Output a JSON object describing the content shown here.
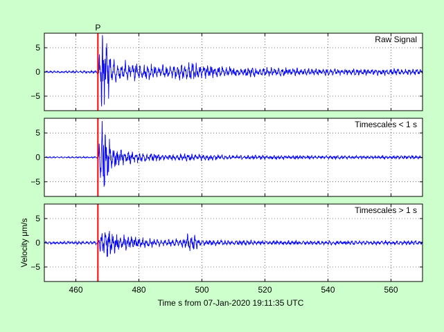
{
  "chart_data": [
    {
      "type": "line",
      "annotation": "Raw Signal",
      "xlim": [
        450,
        570
      ],
      "ylim": [
        -8,
        8
      ],
      "xticks": [
        460,
        480,
        500,
        520,
        540,
        560
      ],
      "yticks": [
        -5,
        0,
        5
      ],
      "pick": {
        "label": "P",
        "x": 467
      },
      "grid": true,
      "series": [
        {
          "color": "#0000ff",
          "x_range": [
            450,
            570
          ],
          "envelope": [
            [
              450,
              0.2
            ],
            [
              466.8,
              0.25
            ],
            [
              467.3,
              3.5
            ],
            [
              468,
              6.5
            ],
            [
              469,
              7.5
            ],
            [
              470,
              5
            ],
            [
              471,
              3
            ],
            [
              473,
              2
            ],
            [
              476,
              1.8
            ],
            [
              480,
              1.4
            ],
            [
              485,
              1.3
            ],
            [
              490,
              1.1
            ],
            [
              495,
              1.5
            ],
            [
              497,
              1.9
            ],
            [
              499,
              1.2
            ],
            [
              505,
              1.0
            ],
            [
              520,
              0.8
            ],
            [
              540,
              0.6
            ],
            [
              570,
              0.5
            ]
          ]
        }
      ]
    },
    {
      "type": "line",
      "annotation": "Timescales < 1 s",
      "xlim": [
        450,
        570
      ],
      "ylim": [
        -8,
        8
      ],
      "xticks": [
        460,
        480,
        500,
        520,
        540,
        560
      ],
      "yticks": [
        -5,
        0,
        5
      ],
      "pick": {
        "label": "",
        "x": 467
      },
      "grid": true,
      "series": [
        {
          "color": "#0000ff",
          "x_range": [
            450,
            570
          ],
          "envelope": [
            [
              450,
              0.12
            ],
            [
              466.8,
              0.15
            ],
            [
              467.3,
              3
            ],
            [
              468,
              5.5
            ],
            [
              469,
              6
            ],
            [
              470,
              4
            ],
            [
              471,
              2.8
            ],
            [
              473,
              1.8
            ],
            [
              476,
              1.2
            ],
            [
              480,
              0.9
            ],
            [
              485,
              0.7
            ],
            [
              490,
              0.6
            ],
            [
              497,
              0.7
            ],
            [
              505,
              0.45
            ],
            [
              520,
              0.35
            ],
            [
              570,
              0.3
            ]
          ]
        }
      ]
    },
    {
      "type": "line",
      "annotation": "Timescales > 1 s",
      "xlim": [
        450,
        570
      ],
      "ylim": [
        -8,
        8
      ],
      "xticks": [
        460,
        480,
        500,
        520,
        540,
        560
      ],
      "yticks": [
        -5,
        0,
        5
      ],
      "pick": {
        "label": "",
        "x": 467
      },
      "grid": true,
      "ylabel": "Velocity μm/s",
      "series": [
        {
          "color": "#0000ff",
          "x_range": [
            450,
            570
          ],
          "envelope": [
            [
              450,
              0.25
            ],
            [
              466.8,
              0.3
            ],
            [
              467.5,
              1.5
            ],
            [
              469,
              2.8
            ],
            [
              471,
              2.5
            ],
            [
              473,
              1.5
            ],
            [
              476,
              1.3
            ],
            [
              480,
              1.0
            ],
            [
              485,
              0.7
            ],
            [
              490,
              0.6
            ],
            [
              494,
              0.8
            ],
            [
              496,
              1.7
            ],
            [
              498,
              1.2
            ],
            [
              500,
              0.5
            ],
            [
              520,
              0.4
            ],
            [
              570,
              0.35
            ]
          ]
        }
      ]
    }
  ],
  "xlabel": "Time s from 07-Jan-2020 19:11:35 UTC",
  "colors": {
    "background": "#ccffcc",
    "axes": "#ffffff",
    "trace": "#0000ff",
    "pick_line": "#ff0000"
  }
}
